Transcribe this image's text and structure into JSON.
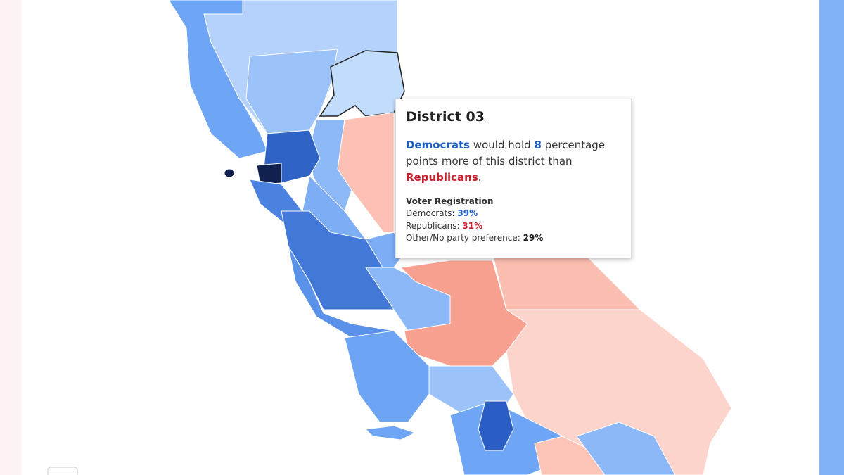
{
  "tooltip": {
    "title": "District 03",
    "summary": {
      "party_a": "Democrats",
      "text_1": "would hold",
      "margin": "8",
      "text_2": "percentage points more of this district than",
      "party_b": "Republicans",
      "end": "."
    },
    "registration": {
      "heading": "Voter Registration",
      "rows": [
        {
          "label": "Democrats:",
          "value": "39%"
        },
        {
          "label": "Republicans:",
          "value": "31%"
        },
        {
          "label": "Other/No party preference:",
          "value": "29%"
        }
      ]
    }
  }
}
